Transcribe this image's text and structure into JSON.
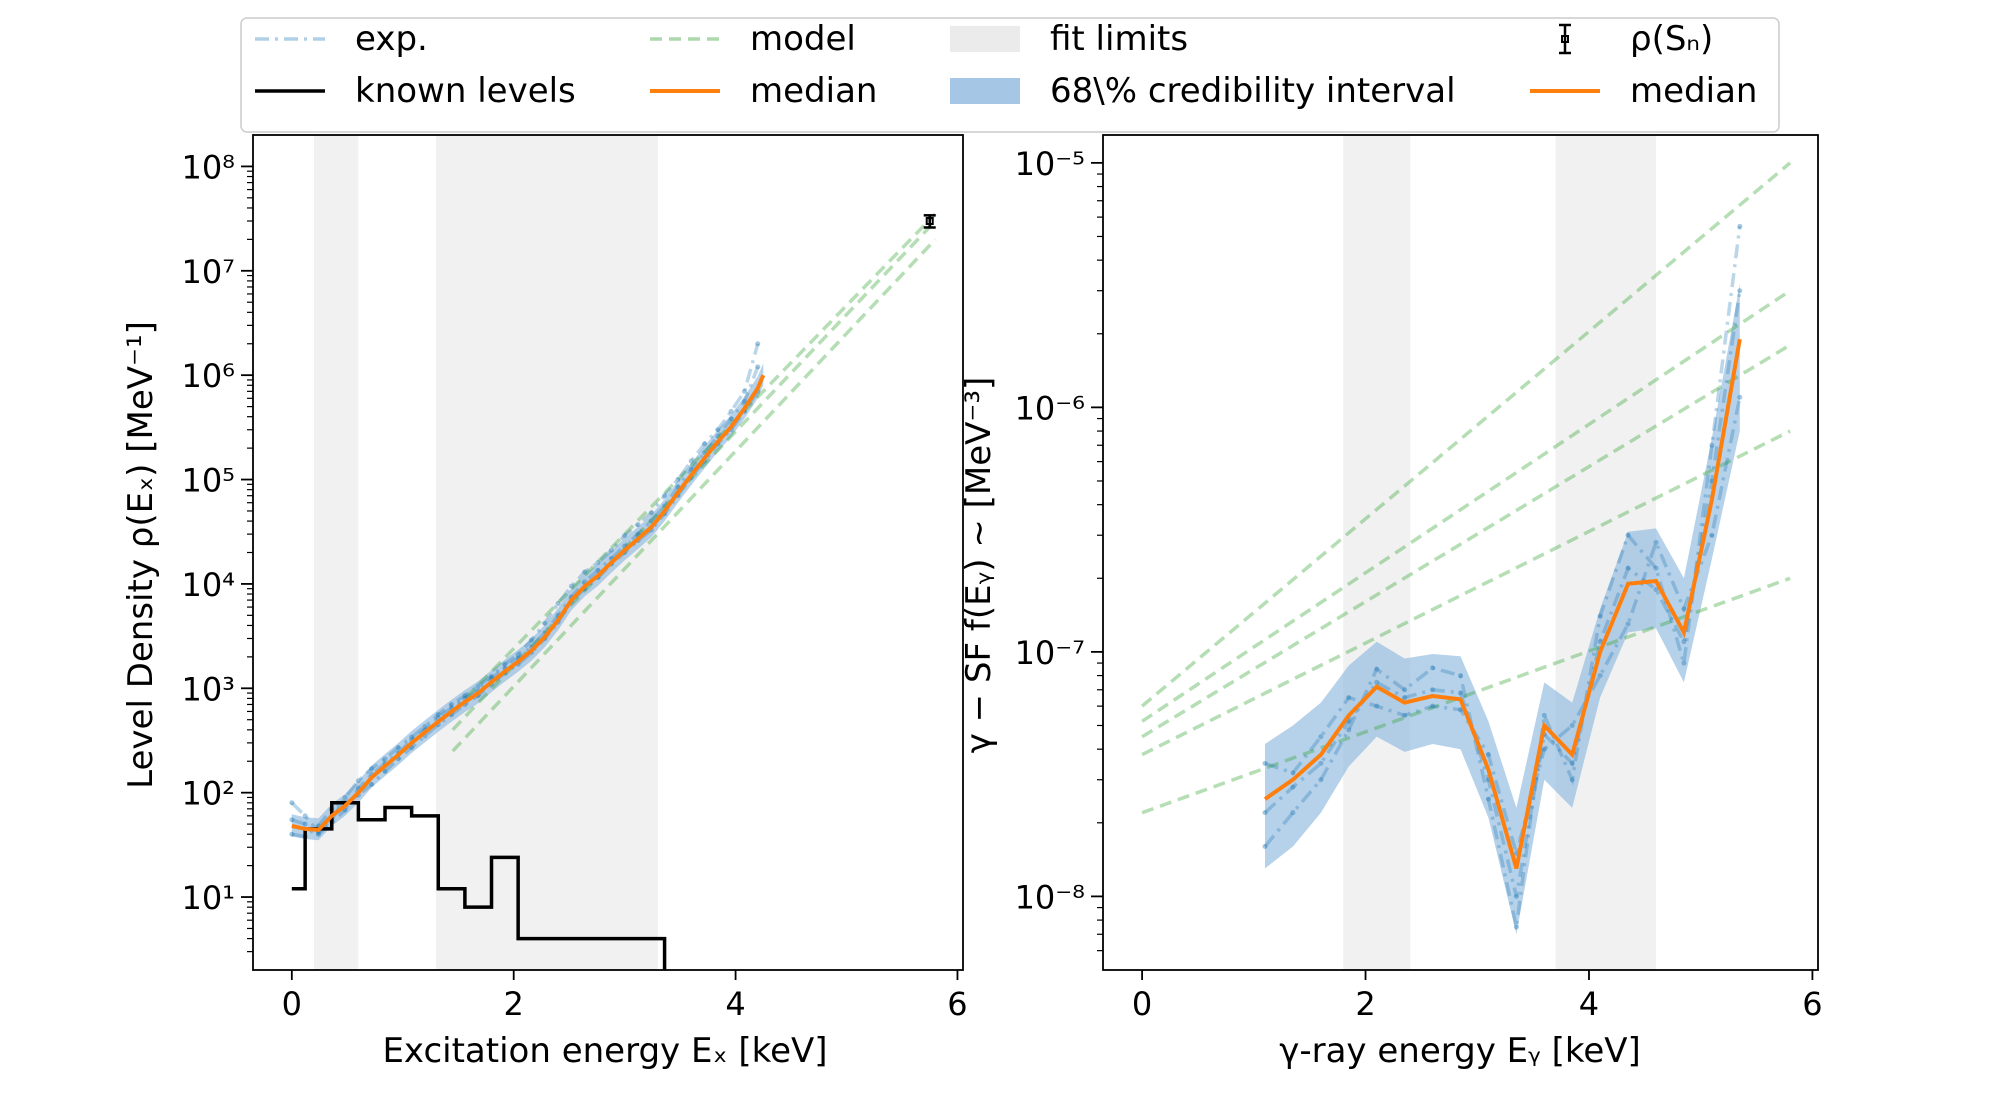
{
  "legend": {
    "entries": [
      {
        "label": "exp.",
        "style": "exp"
      },
      {
        "label": "known levels",
        "style": "black"
      },
      {
        "label": "model",
        "style": "model"
      },
      {
        "label": "median",
        "style": "orange"
      },
      {
        "label": "fit limits",
        "style": "gray"
      },
      {
        "label": "68\\% credibility interval",
        "style": "band"
      },
      {
        "label": "ρ(Sₙ)",
        "style": "errorbar"
      },
      {
        "label": "median",
        "style": "orange"
      }
    ]
  },
  "colors": {
    "exp": "#1f77b4",
    "model": "#2ca02c",
    "median": "#ff7f0e",
    "band": "#8fb8de",
    "fit_limits": "#ebebeb",
    "known_levels": "#000000"
  },
  "chart_data": [
    {
      "type": "line",
      "xlabel": "Excitation energy Eₓ [keV]",
      "ylabel": "Level Density ρ(Eₓ) [MeV⁻¹]",
      "xlim": [
        -0.35,
        6.05
      ],
      "ylim": [
        2,
        200000000
      ],
      "yscale": "log",
      "xticks": [
        0,
        2,
        4,
        6
      ],
      "xtick_labels": [
        "0",
        "2",
        "4",
        "6"
      ],
      "yticks": [
        10,
        100,
        1000,
        10000,
        100000,
        1000000,
        10000000,
        100000000
      ],
      "ytick_labels": [
        "10¹",
        "10²",
        "10³",
        "10⁴",
        "10⁵",
        "10⁶",
        "10⁷",
        "10⁸"
      ],
      "fit_limits": [
        [
          0.2,
          0.6
        ],
        [
          1.3,
          3.3
        ]
      ],
      "known_levels": {
        "x": [
          0,
          0.12,
          0.24,
          0.36,
          0.48,
          0.6,
          0.72,
          0.84,
          0.96,
          1.08,
          1.2,
          1.32,
          1.44,
          1.56,
          1.68,
          1.8,
          1.92,
          2.04,
          2.16,
          3.36
        ],
        "y": [
          12,
          45,
          45,
          80,
          80,
          55,
          55,
          72,
          72,
          60,
          60,
          12,
          12,
          8,
          8,
          24,
          24,
          4,
          4,
          4
        ],
        "drop_to": 2
      },
      "median": {
        "x": [
          0,
          0.12,
          0.24,
          0.36,
          0.48,
          0.6,
          0.72,
          0.84,
          0.96,
          1.08,
          1.2,
          1.32,
          1.44,
          1.56,
          1.68,
          1.8,
          1.92,
          2.04,
          2.16,
          2.28,
          2.4,
          2.52,
          2.64,
          2.76,
          2.88,
          3.0,
          3.12,
          3.24,
          3.36,
          3.48,
          3.6,
          3.72,
          3.84,
          3.96,
          4.08,
          4.2,
          4.25
        ],
        "y": [
          48,
          45,
          44,
          60,
          75,
          100,
          140,
          180,
          230,
          300,
          380,
          480,
          600,
          740,
          900,
          1150,
          1450,
          1800,
          2300,
          3100,
          4500,
          7000,
          9500,
          12000,
          16000,
          21000,
          27000,
          35000,
          50000,
          75000,
          110000,
          160000,
          230000,
          320000,
          480000,
          750000,
          1000000
        ]
      },
      "band": {
        "x": [
          0,
          0.12,
          0.24,
          0.36,
          0.48,
          0.6,
          0.72,
          0.84,
          0.96,
          1.08,
          1.2,
          1.32,
          1.44,
          1.56,
          1.68,
          1.8,
          1.92,
          2.04,
          2.16,
          2.28,
          2.4,
          2.52,
          2.64,
          2.76,
          2.88,
          3.0,
          3.12,
          3.24,
          3.36,
          3.48,
          3.6,
          3.72,
          3.84,
          3.96,
          4.08,
          4.2,
          4.25
        ],
        "lower": [
          38,
          36,
          35,
          48,
          60,
          80,
          112,
          144,
          184,
          240,
          304,
          384,
          480,
          592,
          720,
          920,
          1160,
          1440,
          1840,
          2480,
          3600,
          5600,
          7600,
          9600,
          12800,
          16800,
          21600,
          28000,
          40000,
          60000,
          88000,
          128000,
          184000,
          256000,
          384000,
          600000,
          800000
        ],
        "upper": [
          62,
          58,
          57,
          78,
          97,
          130,
          182,
          234,
          299,
          390,
          494,
          624,
          780,
          962,
          1170,
          1495,
          1885,
          2340,
          2990,
          4030,
          5850,
          9100,
          12350,
          15600,
          20800,
          27300,
          35100,
          45500,
          65000,
          97500,
          143000,
          208000,
          299000,
          416000,
          624000,
          975000,
          1300000
        ]
      },
      "exp_series": [
        {
          "x": [
            0,
            0.12,
            0.24,
            0.36,
            0.48,
            0.6,
            0.72,
            0.84,
            0.96,
            1.08,
            1.2,
            1.32,
            1.44,
            1.56,
            1.68,
            1.8,
            1.92,
            2.04,
            2.16,
            2.28,
            2.4,
            2.52,
            2.64,
            2.76,
            2.88,
            3.0,
            3.12,
            3.24,
            3.36,
            3.48,
            3.6,
            3.72,
            3.84,
            3.96,
            4.08,
            4.2
          ],
          "y": [
            80,
            60,
            42,
            55,
            90,
            130,
            170,
            210,
            270,
            340,
            430,
            560,
            700,
            850,
            1050,
            1300,
            1700,
            2100,
            2900,
            4200,
            6500,
            9500,
            13000,
            16000,
            21000,
            29000,
            37000,
            48000,
            70000,
            100000,
            150000,
            220000,
            300000,
            450000,
            700000,
            2000000
          ]
        },
        {
          "x": [
            0,
            0.12,
            0.24,
            0.36,
            0.48,
            0.6,
            0.72,
            0.84,
            0.96,
            1.08,
            1.2,
            1.32,
            1.44,
            1.56,
            1.68,
            1.8,
            1.92,
            2.04,
            2.16,
            2.28,
            2.4,
            2.52,
            2.64,
            2.76,
            2.88,
            3.0,
            3.12,
            3.24,
            3.36,
            3.48,
            3.6,
            3.72,
            3.84,
            3.96,
            4.08,
            4.2
          ],
          "y": [
            40,
            38,
            48,
            70,
            80,
            95,
            120,
            160,
            210,
            270,
            350,
            450,
            560,
            700,
            850,
            1100,
            1400,
            1700,
            2200,
            3000,
            4300,
            6800,
            9000,
            11500,
            15500,
            20000,
            26000,
            33000,
            47000,
            70000,
            105000,
            150000,
            220000,
            300000,
            450000,
            700000
          ]
        },
        {
          "x": [
            0,
            0.12,
            0.24,
            0.36,
            0.48,
            0.6,
            0.72,
            0.84,
            0.96,
            1.08,
            1.2,
            1.32,
            1.44,
            1.56,
            1.68,
            1.8,
            1.92,
            2.04,
            2.16,
            2.28,
            2.4,
            2.52,
            2.64,
            2.76,
            2.88,
            3.0,
            3.12,
            3.24,
            3.36,
            3.48,
            3.6,
            3.72,
            3.84,
            3.96,
            4.08,
            4.2
          ],
          "y": [
            55,
            50,
            40,
            52,
            68,
            110,
            150,
            190,
            240,
            320,
            400,
            520,
            650,
            800,
            950,
            1250,
            1550,
            1950,
            2500,
            3400,
            5000,
            7500,
            10500,
            13500,
            17500,
            23000,
            30000,
            40000,
            56000,
            85000,
            125000,
            180000,
            260000,
            380000,
            560000,
            1200000
          ]
        }
      ],
      "model_series": [
        {
          "x": [
            1.45,
            5.8
          ],
          "y": [
            400,
            30000000
          ]
        },
        {
          "x": [
            1.45,
            5.8
          ],
          "y": [
            250,
            20000000
          ]
        },
        {
          "x": [
            1.45,
            5.8
          ],
          "y": [
            600,
            35000000
          ]
        }
      ],
      "rho_sn": {
        "x": 5.75,
        "y": 30000000,
        "yerr_low": 26000000,
        "yerr_high": 34000000
      }
    },
    {
      "type": "line",
      "xlabel": "γ-ray energy Eᵧ [keV]",
      "ylabel": "γ − SF f(Eᵧ) ∼ [MeV⁻³]",
      "xlim": [
        -0.35,
        6.05
      ],
      "ylim": [
        5e-09,
        1.3e-05
      ],
      "yscale": "log",
      "xticks": [
        0,
        2,
        4,
        6
      ],
      "xtick_labels": [
        "0",
        "2",
        "4",
        "6"
      ],
      "yticks": [
        1e-08,
        1e-07,
        1e-06,
        1e-05
      ],
      "ytick_labels": [
        "10⁻⁸",
        "10⁻⁷",
        "10⁻⁶",
        "10⁻⁵"
      ],
      "fit_limits": [
        [
          1.8,
          2.4
        ],
        [
          3.7,
          4.6
        ]
      ],
      "median": {
        "x": [
          1.1,
          1.35,
          1.6,
          1.85,
          2.1,
          2.35,
          2.6,
          2.85,
          3.1,
          3.35,
          3.6,
          3.85,
          4.1,
          4.35,
          4.6,
          4.85,
          5.1,
          5.35
        ],
        "y": [
          2.5e-08,
          3e-08,
          3.8e-08,
          5.5e-08,
          7.2e-08,
          6.2e-08,
          6.6e-08,
          6.4e-08,
          3.3e-08,
          1.3e-08,
          5e-08,
          3.8e-08,
          1e-07,
          1.9e-07,
          1.95e-07,
          1.2e-07,
          4.2e-07,
          1.9e-06
        ]
      },
      "band": {
        "x": [
          1.1,
          1.35,
          1.6,
          1.85,
          2.1,
          2.35,
          2.6,
          2.85,
          3.1,
          3.35,
          3.6,
          3.85,
          4.1,
          4.35,
          4.6,
          4.85,
          5.1,
          5.35
        ],
        "lower": [
          1.3e-08,
          1.6e-08,
          2.2e-08,
          3.4e-08,
          4.5e-08,
          3.9e-08,
          4.2e-08,
          4e-08,
          2.1e-08,
          7e-09,
          3e-08,
          2.3e-08,
          6.5e-08,
          1.2e-07,
          1.25e-07,
          7.5e-08,
          2.4e-07,
          8e-07
        ],
        "upper": [
          4.2e-08,
          5e-08,
          6.2e-08,
          8.8e-08,
          1.1e-07,
          9.4e-08,
          9.8e-08,
          9.6e-08,
          5.2e-08,
          2.3e-08,
          7.5e-08,
          6.2e-08,
          1.5e-07,
          3.1e-07,
          3.2e-07,
          2e-07,
          7.5e-07,
          3.2e-06
        ]
      },
      "exp_series": [
        {
          "x": [
            1.1,
            1.35,
            1.6,
            1.85,
            2.1,
            2.35,
            2.6,
            2.85,
            3.1,
            3.35,
            3.6,
            3.85,
            4.1,
            4.35,
            4.6,
            4.85,
            5.1,
            5.35
          ],
          "y": [
            1.6e-08,
            2.2e-08,
            3e-08,
            4.8e-08,
            8.5e-08,
            7e-08,
            8.6e-08,
            8e-08,
            2.5e-08,
            7.5e-09,
            5.5e-08,
            3e-08,
            1.4e-07,
            3e-07,
            2.2e-07,
            9e-08,
            7e-07,
            5.5e-06
          ]
        },
        {
          "x": [
            1.1,
            1.35,
            1.6,
            1.85,
            2.1,
            2.35,
            2.6,
            2.85,
            3.1,
            3.35,
            3.6,
            3.85,
            4.1,
            4.35,
            4.6,
            4.85,
            5.1,
            5.35
          ],
          "y": [
            3.5e-08,
            3.2e-08,
            4.5e-08,
            6.5e-08,
            6e-08,
            5.5e-08,
            6e-08,
            5.8e-08,
            3.8e-08,
            1.5e-08,
            4e-08,
            5e-08,
            8e-08,
            1.3e-07,
            2.8e-07,
            1.5e-07,
            3e-07,
            1.1e-06
          ]
        },
        {
          "x": [
            1.1,
            1.35,
            1.6,
            1.85,
            2.1,
            2.35,
            2.6,
            2.85,
            3.1,
            3.35,
            3.6,
            3.85,
            4.1,
            4.35,
            4.6,
            4.85,
            5.1,
            5.35
          ],
          "y": [
            2.2e-08,
            2.8e-08,
            3.5e-08,
            5.2e-08,
            7.5e-08,
            6.5e-08,
            7e-08,
            6.8e-08,
            3e-08,
            1e-08,
            4.6e-08,
            3.5e-08,
            1.1e-07,
            2.2e-07,
            1.8e-07,
            1.1e-07,
            5e-07,
            3e-06
          ]
        }
      ],
      "model_series": [
        {
          "x": [
            0,
            5.8
          ],
          "y": [
            2.2e-08,
            2e-07
          ]
        },
        {
          "x": [
            0,
            5.8
          ],
          "y": [
            3.8e-08,
            8e-07
          ]
        },
        {
          "x": [
            0,
            5.8
          ],
          "y": [
            4.5e-08,
            1.8e-06
          ]
        },
        {
          "x": [
            0,
            5.8
          ],
          "y": [
            5.2e-08,
            3e-06
          ]
        },
        {
          "x": [
            0,
            5.8
          ],
          "y": [
            6e-08,
            1e-05
          ]
        }
      ]
    }
  ]
}
